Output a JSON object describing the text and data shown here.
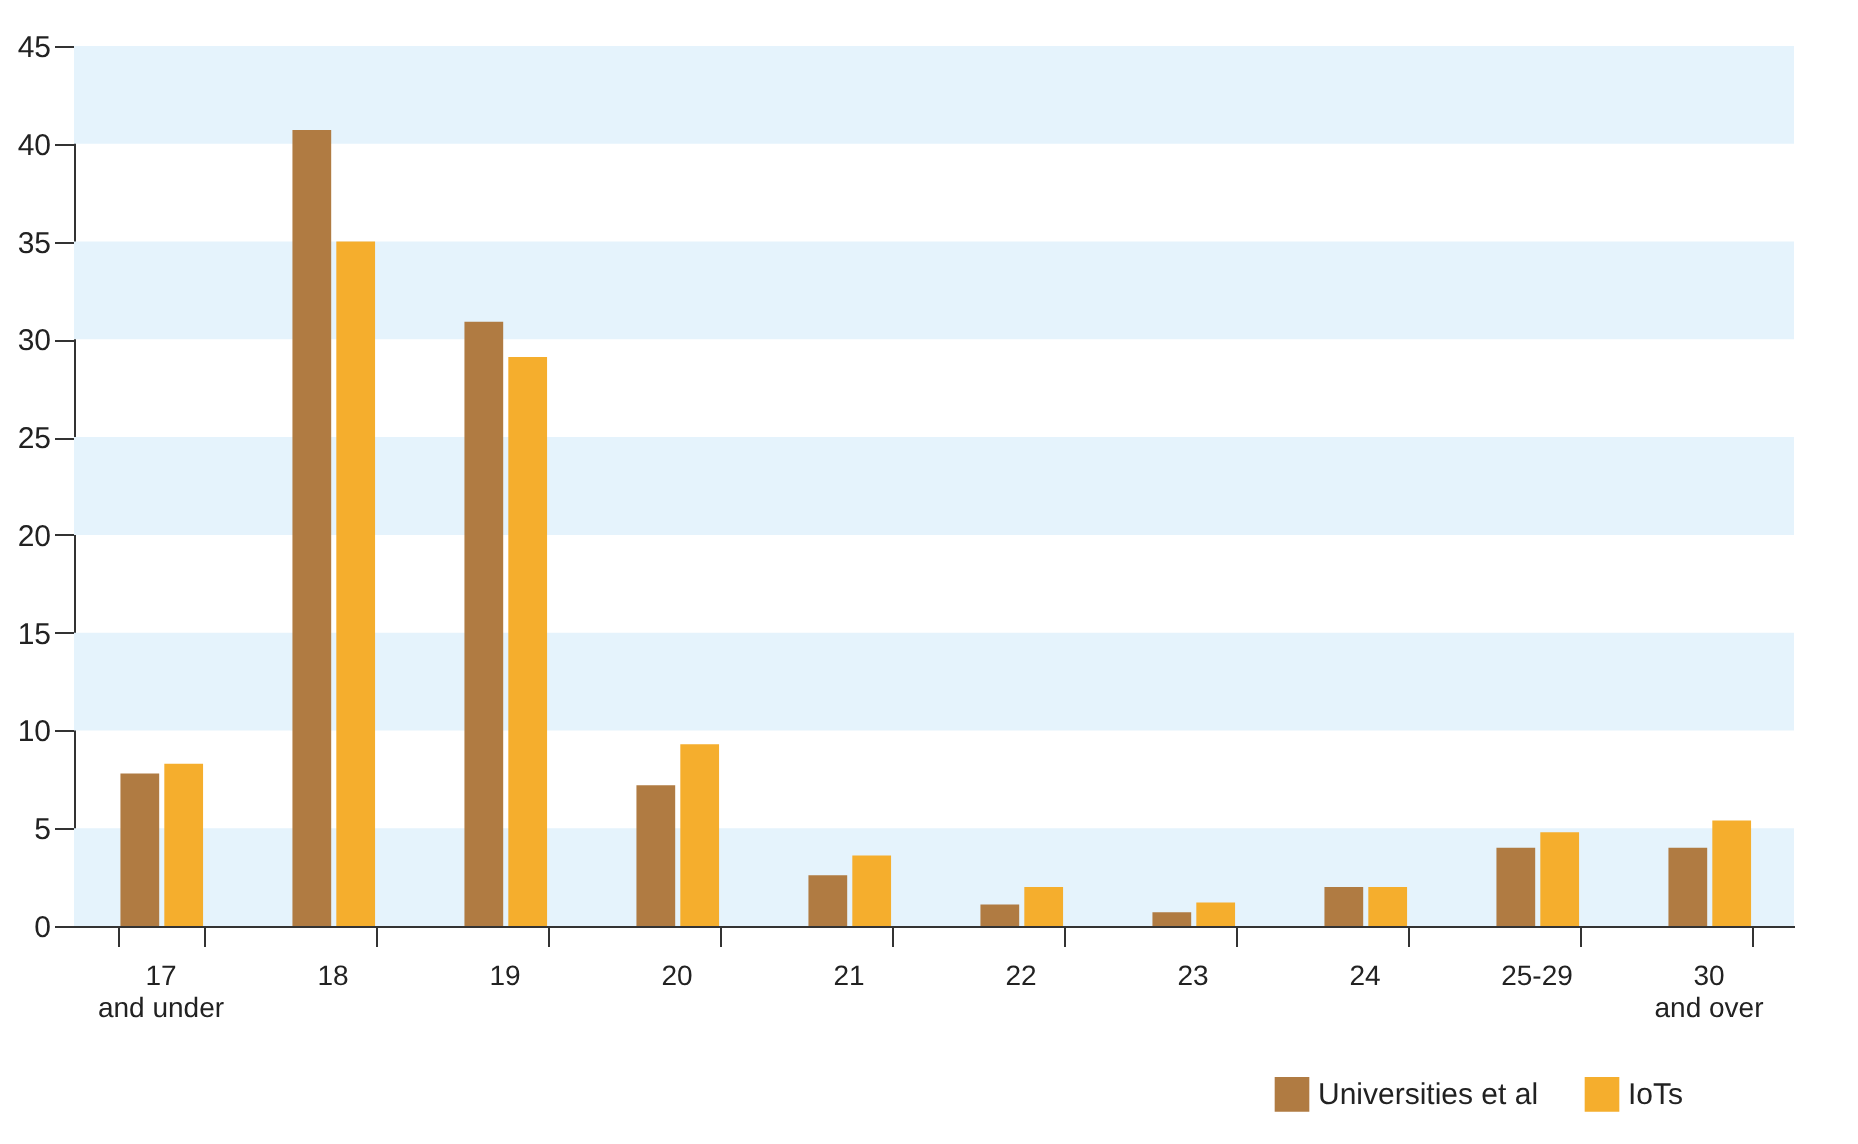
{
  "chart_data": {
    "type": "bar",
    "categories": [
      "17 and under",
      "18",
      "19",
      "20",
      "21",
      "22",
      "23",
      "24",
      "25-29",
      "30 and over"
    ],
    "series": [
      {
        "name": "Universities et al",
        "color": "#b07b42",
        "values": [
          7.8,
          40.7,
          30.9,
          7.2,
          2.6,
          1.1,
          0.7,
          2.0,
          4.0,
          4.0
        ]
      },
      {
        "name": "IoTs",
        "color": "#f5ae2d",
        "values": [
          8.3,
          35.0,
          29.1,
          9.3,
          3.6,
          2.0,
          1.2,
          2.0,
          4.8,
          5.4
        ]
      }
    ],
    "ylim": [
      0,
      45
    ],
    "yticks": [
      0,
      5,
      10,
      15,
      20,
      25,
      30,
      35,
      40,
      45
    ],
    "bands": [
      {
        "axis": "y",
        "from": 0,
        "to": 5,
        "color": "#e5f3fc"
      },
      {
        "axis": "y",
        "from": 10,
        "to": 15,
        "color": "#e5f3fc"
      },
      {
        "axis": "y",
        "from": 20,
        "to": 25,
        "color": "#e5f3fc"
      },
      {
        "axis": "y",
        "from": 30,
        "to": 35,
        "color": "#e5f3fc"
      },
      {
        "axis": "y",
        "from": 40,
        "to": 45,
        "color": "#e5f3fc"
      }
    ],
    "grid": false,
    "legend": "bottom right"
  }
}
